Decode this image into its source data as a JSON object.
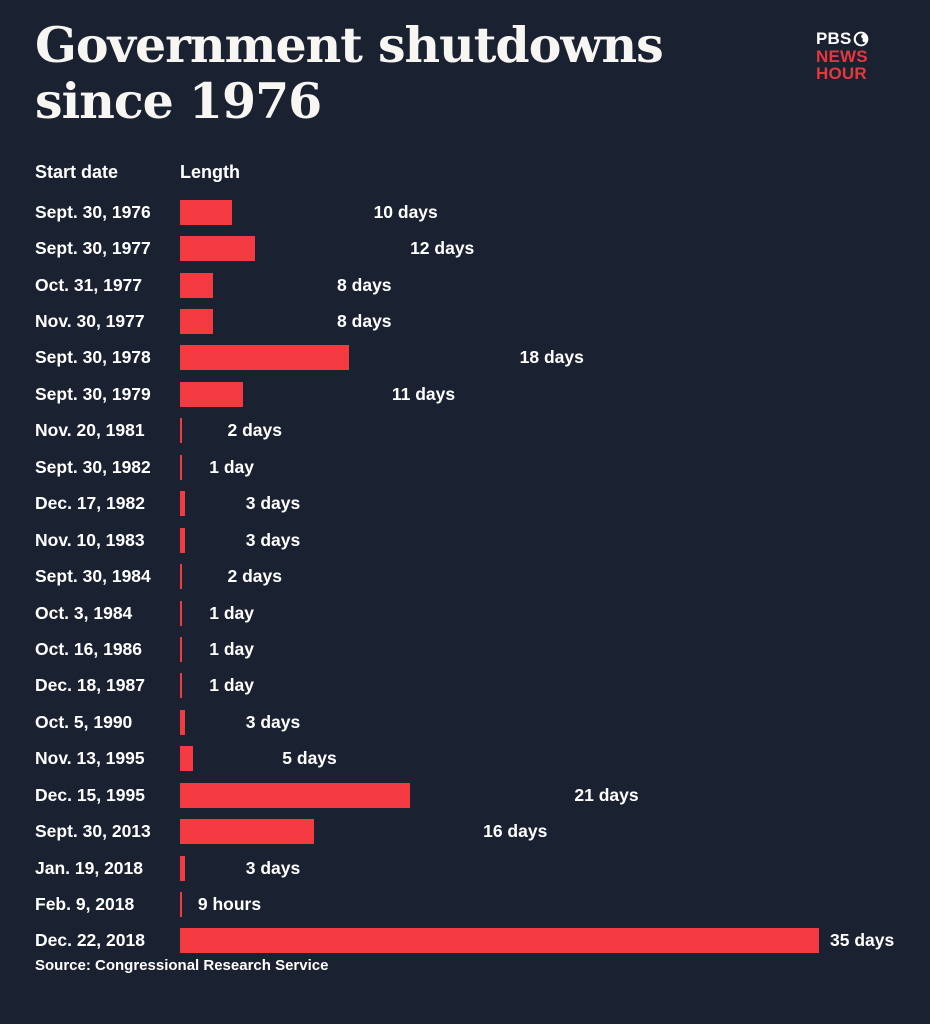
{
  "header": {
    "title_line1": "Government shutdowns",
    "title_line2": "since 1976",
    "logo": {
      "pbs": "PBS",
      "news": "NEWS",
      "hour": "HOUR"
    }
  },
  "columns": {
    "date": "Start date",
    "length": "Length"
  },
  "footer": {
    "source": "Source: Congressional Research Service"
  },
  "colors": {
    "background": "#1a2130",
    "bar": "#f23a40",
    "text": "#ffffff",
    "logo_red": "#e3383f"
  },
  "chart_data": {
    "type": "bar",
    "orientation": "horizontal",
    "title": "Government shutdowns since 1976",
    "xlabel": "Length",
    "ylabel": "Start date",
    "unit": "days",
    "xlim": [
      0,
      35
    ],
    "grid": false,
    "legend": false,
    "source": "Source: Congressional Research Service",
    "rows": [
      {
        "date": "Sept. 30, 1976",
        "days": 10,
        "label": "10 days"
      },
      {
        "date": "Sept. 30, 1977",
        "days": 12,
        "label": "12 days"
      },
      {
        "date": "Oct. 31, 1977",
        "days": 8,
        "label": "8 days"
      },
      {
        "date": "Nov. 30, 1977",
        "days": 8,
        "label": "8 days"
      },
      {
        "date": "Sept. 30, 1978",
        "days": 18,
        "label": "18 days"
      },
      {
        "date": "Sept. 30, 1979",
        "days": 11,
        "label": "11 days"
      },
      {
        "date": "Nov. 20, 1981",
        "days": 2,
        "label": "2 days"
      },
      {
        "date": "Sept. 30, 1982",
        "days": 1,
        "label": "1 day"
      },
      {
        "date": "Dec. 17, 1982",
        "days": 3,
        "label": "3 days"
      },
      {
        "date": "Nov. 10, 1983",
        "days": 3,
        "label": "3 days"
      },
      {
        "date": "Sept. 30, 1984",
        "days": 2,
        "label": "2 days"
      },
      {
        "date": "Oct. 3, 1984",
        "days": 1,
        "label": "1 day"
      },
      {
        "date": "Oct. 16, 1986",
        "days": 1,
        "label": "1 day"
      },
      {
        "date": "Dec. 18, 1987",
        "days": 1,
        "label": "1 day"
      },
      {
        "date": "Oct. 5, 1990",
        "days": 3,
        "label": "3 days"
      },
      {
        "date": "Nov. 13, 1995",
        "days": 5,
        "label": "5 days"
      },
      {
        "date": "Dec. 15, 1995",
        "days": 21,
        "label": "21 days"
      },
      {
        "date": "Sept. 30, 2013",
        "days": 16,
        "label": "16 days"
      },
      {
        "date": "Jan. 19, 2018",
        "days": 3,
        "label": "3 days"
      },
      {
        "date": "Feb. 9, 2018",
        "days": 0.375,
        "label": "9 hours"
      },
      {
        "date": "Dec. 22, 2018",
        "days": 35,
        "label": "35 days"
      }
    ]
  }
}
